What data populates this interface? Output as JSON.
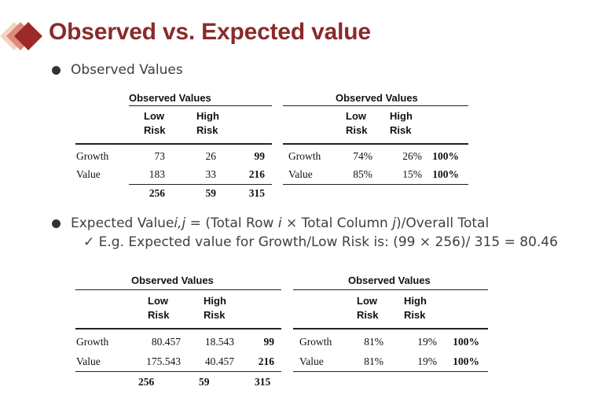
{
  "title": "Observed vs. Expected value",
  "bullets": {
    "b1": "Observed Values",
    "b2_pre": "Expected Value",
    "b2_ij": "i,j",
    "b2_mid1": " = (Total Row ",
    "b2_i": "i",
    "b2_mid2": " × Total Column ",
    "b2_j": "j",
    "b2_post": ")/Overall Total",
    "sub": "✓ E.g. Expected value for Growth/Low Risk is: (99 × 256)/ 315 = 80.46"
  },
  "table1": {
    "header": "Observed Values",
    "col_low": [
      "Low",
      "Risk"
    ],
    "col_high": [
      "High",
      "Risk"
    ],
    "rows": [
      {
        "label": "Growth",
        "low": "73",
        "high": "26",
        "total": "99"
      },
      {
        "label": "Value",
        "low": "183",
        "high": "33",
        "total": "216"
      }
    ],
    "totals": {
      "low": "256",
      "high": "59",
      "total": "315"
    }
  },
  "table2": {
    "header": "Observed Values",
    "col_low": [
      "Low",
      "Risk"
    ],
    "col_high": [
      "High",
      "Risk"
    ],
    "rows": [
      {
        "label": "Growth",
        "low": "74%",
        "high": "26%",
        "total": "100%"
      },
      {
        "label": "Value",
        "low": "85%",
        "high": "15%",
        "total": "100%"
      }
    ]
  },
  "table3": {
    "header": "Observed Values",
    "col_low": [
      "Low",
      "Risk"
    ],
    "col_high": [
      "High",
      "Risk"
    ],
    "rows": [
      {
        "label": "Growth",
        "low": "80.457",
        "high": "18.543",
        "total": "99"
      },
      {
        "label": "Value",
        "low": "175.543",
        "high": "40.457",
        "total": "216"
      }
    ],
    "totals": {
      "low": "256",
      "high": "59",
      "total": "315"
    }
  },
  "table4": {
    "header": "Observed Values",
    "col_low": [
      "Low",
      "Risk"
    ],
    "col_high": [
      "High",
      "Risk"
    ],
    "rows": [
      {
        "label": "Growth",
        "low": "81%",
        "high": "19%",
        "total": "100%"
      },
      {
        "label": "Value",
        "low": "81%",
        "high": "19%",
        "total": "100%"
      }
    ]
  },
  "colors": {
    "title": "#8b2a2a",
    "logo_dark": "#9c2a2a",
    "logo_mid": "#d77a6a",
    "logo_light": "#f0c9b9"
  }
}
